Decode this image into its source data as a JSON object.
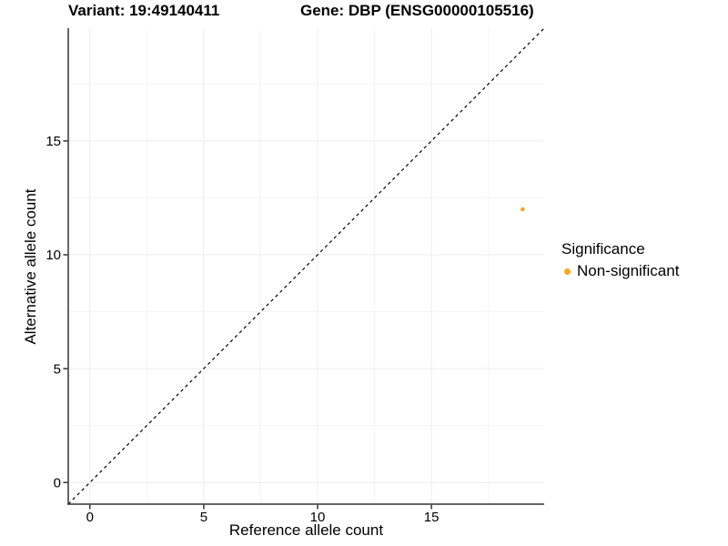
{
  "header": {
    "title_left": "Variant: 19:49140411",
    "title_right": "Gene: DBP (ENSG00000105516)"
  },
  "chart_data": {
    "type": "scatter",
    "title_left": "Variant: 19:49140411",
    "title_right": "Gene: DBP (ENSG00000105516)",
    "xlabel": "Reference allele count",
    "ylabel": "Alternative allele count",
    "xlim": [
      -0.95,
      19.95
    ],
    "ylim": [
      -0.95,
      19.95
    ],
    "x_ticks": [
      0,
      5,
      10,
      15
    ],
    "y_ticks": [
      0,
      5,
      10,
      15
    ],
    "x_minor_ticks": [
      2.5,
      7.5,
      12.5,
      17.5
    ],
    "y_minor_ticks": [
      2.5,
      7.5,
      12.5,
      17.5
    ],
    "grid": true,
    "points": [
      {
        "x": 19,
        "y": 12,
        "series": "Non-significant"
      }
    ],
    "identity_line": {
      "style": "dashed",
      "x1": -0.95,
      "y1": -0.95,
      "x2": 19.95,
      "y2": 19.95
    },
    "legend": {
      "title": "Significance",
      "position": "right",
      "items": [
        {
          "label": "Non-significant",
          "color": "#FFA520"
        }
      ]
    }
  },
  "colors": {
    "point": "#FFA520",
    "axis_line": "#333333",
    "tick_mark": "#333333",
    "grid_major": "#ececec",
    "grid_minor": "#f4f4f4",
    "identity_line": "#000000",
    "text": "#000000",
    "background": "#ffffff"
  }
}
